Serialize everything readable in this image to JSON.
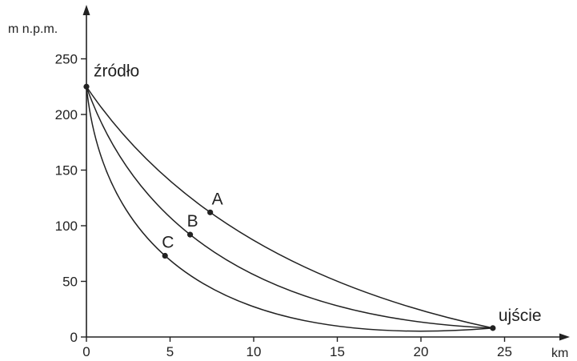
{
  "chart_data": {
    "type": "line",
    "xlabel": "km",
    "ylabel": "m n.p.m.",
    "xlim": [
      0,
      28.5
    ],
    "ylim": [
      0,
      272
    ],
    "x_ticks": [
      0,
      5,
      10,
      15,
      20,
      25
    ],
    "y_ticks": [
      0,
      50,
      100,
      150,
      200,
      250
    ],
    "grid": false,
    "series": [
      {
        "name": "A",
        "values": [
          [
            0,
            225
          ],
          [
            7.4,
            112
          ],
          [
            24.3,
            8
          ]
        ]
      },
      {
        "name": "B",
        "values": [
          [
            0,
            225
          ],
          [
            6.2,
            92
          ],
          [
            24.3,
            8
          ]
        ]
      },
      {
        "name": "C",
        "values": [
          [
            0,
            225
          ],
          [
            4.7,
            73
          ],
          [
            24.3,
            8
          ]
        ]
      }
    ],
    "points": [
      {
        "label": "A",
        "x": 7.4,
        "y": 112
      },
      {
        "label": "B",
        "x": 6.2,
        "y": 92
      },
      {
        "label": "C",
        "x": 4.7,
        "y": 73
      }
    ],
    "annotations": [
      {
        "text": "źródło",
        "x": 0,
        "y": 225
      },
      {
        "text": "ujście",
        "x": 24.3,
        "y": 8
      }
    ]
  }
}
